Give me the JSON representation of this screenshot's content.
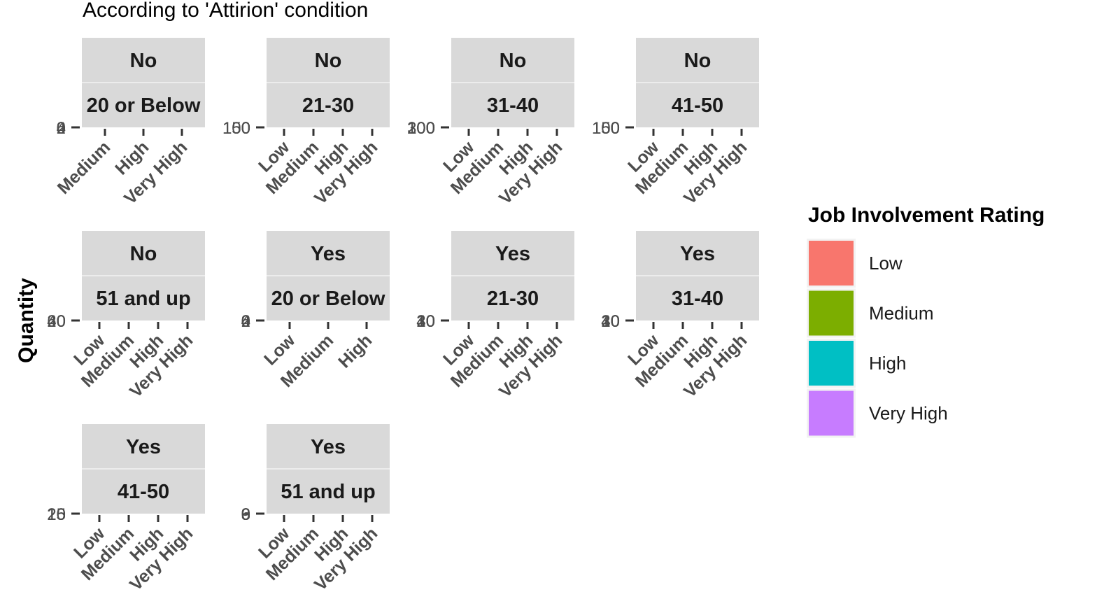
{
  "chart_data": {
    "type": "bar",
    "subtitle": "According to 'Attirion' condition",
    "ylabel": "Quantity",
    "legend": {
      "title": "Job Involvement Rating",
      "position": "right",
      "entries": [
        {
          "label": "Low",
          "color": "#F8766D"
        },
        {
          "label": "Medium",
          "color": "#7CAE00"
        },
        {
          "label": "High",
          "color": "#00BFC4"
        },
        {
          "label": "Very High",
          "color": "#C77CFF"
        }
      ]
    },
    "panels": [
      {
        "strip": [
          "No",
          "20 or Below"
        ],
        "categories": [
          "Medium",
          "High",
          "Very High"
        ],
        "yticks": [
          "0",
          "2",
          "4",
          "6"
        ]
      },
      {
        "strip": [
          "No",
          "21-30"
        ],
        "categories": [
          "Low",
          "Medium",
          "High",
          "Very High"
        ],
        "yticks": [
          "0",
          "50",
          "100",
          "150"
        ]
      },
      {
        "strip": [
          "No",
          "31-40"
        ],
        "categories": [
          "Low",
          "Medium",
          "High",
          "Very High"
        ],
        "yticks": [
          "0",
          "100",
          "200",
          "300"
        ]
      },
      {
        "strip": [
          "No",
          "41-50"
        ],
        "categories": [
          "Low",
          "Medium",
          "High",
          "Very High"
        ],
        "yticks": [
          "0",
          "50",
          "100",
          "150"
        ]
      },
      {
        "strip": [
          "No",
          "51 and up"
        ],
        "categories": [
          "Low",
          "Medium",
          "High",
          "Very High"
        ],
        "yticks": [
          "0",
          "20",
          "40",
          "60"
        ]
      },
      {
        "strip": [
          "Yes",
          "20 or Below"
        ],
        "categories": [
          "Low",
          "Medium",
          "High"
        ],
        "yticks": [
          "0",
          "2",
          "4",
          "6"
        ]
      },
      {
        "strip": [
          "Yes",
          "21-30"
        ],
        "categories": [
          "Low",
          "Medium",
          "High",
          "Very High"
        ],
        "yticks": [
          "0",
          "10",
          "20",
          "30",
          "40"
        ]
      },
      {
        "strip": [
          "Yes",
          "31-40"
        ],
        "categories": [
          "Low",
          "Medium",
          "High",
          "Very High"
        ],
        "yticks": [
          "0",
          "10",
          "20",
          "30",
          "40"
        ]
      },
      {
        "strip": [
          "Yes",
          "41-50"
        ],
        "categories": [
          "Low",
          "Medium",
          "High",
          "Very High"
        ],
        "yticks": [
          "5",
          "10",
          "15",
          "20",
          "25"
        ]
      },
      {
        "strip": [
          "Yes",
          "51 and up"
        ],
        "categories": [
          "Low",
          "Medium",
          "High",
          "Very High"
        ],
        "yticks": [
          "0",
          "3",
          "6",
          "9"
        ]
      }
    ]
  }
}
